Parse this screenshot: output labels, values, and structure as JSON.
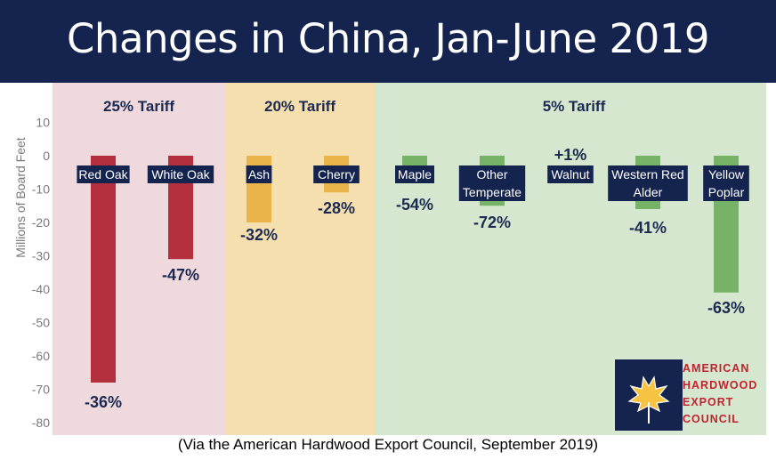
{
  "title": "Changes in China, Jan-June 2019",
  "source": "(Via the American Hardwood Export Council, September 2019)",
  "logo": {
    "lines": [
      "AMERICAN",
      "HARDWOOD",
      "EXPORT",
      "COUNCIL"
    ]
  },
  "colors": {
    "header": "#14244f",
    "band_25": "#efd9dd",
    "band_20": "#f6dfae",
    "band_5": "#d6e7cf",
    "bar_25": "#b5303f",
    "bar_20": "#e9b44a",
    "bar_5": "#76b366",
    "label_box": "#14244f",
    "pct_text": "#1c2a52",
    "logo_red": "#c0232f",
    "logo_navy": "#14244f"
  },
  "chart_data": {
    "type": "bar",
    "ylabel": "Millions of Board Feet",
    "ylim": [
      -82,
      12
    ],
    "yticks": [
      10,
      0,
      -10,
      -20,
      -30,
      -40,
      -50,
      -60,
      -70,
      -80
    ],
    "groups": [
      {
        "label": "25% Tariff",
        "color_key": "25"
      },
      {
        "label": "20% Tariff",
        "color_key": "20"
      },
      {
        "label": "5% Tariff",
        "color_key": "5"
      }
    ],
    "categories": [
      "Red Oak",
      "White Oak",
      "Ash",
      "Cherry",
      "Maple",
      "Other Temperate",
      "Walnut",
      "Western Red Alder",
      "Yellow Poplar"
    ],
    "category_lines": [
      [
        "Red Oak"
      ],
      [
        "White Oak"
      ],
      [
        "Ash"
      ],
      [
        "Cherry"
      ],
      [
        "Maple"
      ],
      [
        "Other",
        "Temperate"
      ],
      [
        "Walnut"
      ],
      [
        "Western Red",
        "Alder"
      ],
      [
        "Yellow",
        "Poplar"
      ]
    ],
    "group_index": [
      0,
      0,
      1,
      1,
      2,
      2,
      2,
      2,
      2
    ],
    "values": [
      -68,
      -31,
      -20,
      -11,
      -3,
      -15,
      0.2,
      -16,
      -41
    ],
    "pct_labels": [
      "-36%",
      "-47%",
      "-32%",
      "-28%",
      "-54%",
      "-72%",
      "+1%",
      "-41%",
      "-63%"
    ]
  }
}
